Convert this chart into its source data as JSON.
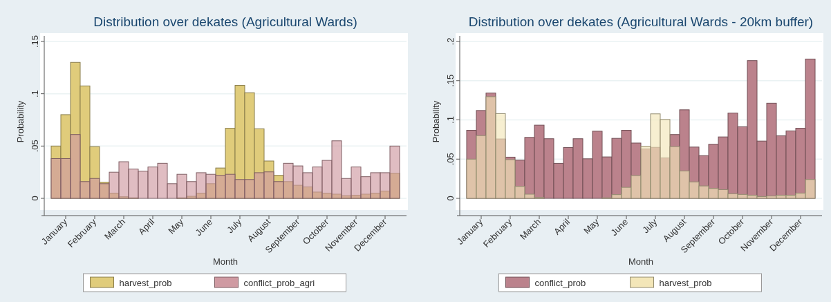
{
  "chart_data": [
    {
      "type": "bar",
      "title": "Distribution over dekates (Agricultural Wards)",
      "xlabel": "Month",
      "ylabel": "Probability",
      "categories": [
        null,
        "January",
        null,
        null,
        "February",
        null,
        null,
        "March",
        null,
        null,
        "April",
        null,
        null,
        "May",
        null,
        null,
        "June",
        null,
        null,
        "July",
        null,
        null,
        "August",
        null,
        null,
        "September",
        null,
        null,
        "October",
        null,
        null,
        "November",
        null,
        null,
        "December",
        null
      ],
      "series": [
        {
          "name": "harvest_prob",
          "color": "#e0cc7b",
          "values": [
            0.05,
            0.08,
            0.13,
            0.1075,
            0.0495,
            0.0154,
            0.005,
            0.0015,
            0.0005,
            0,
            0,
            0,
            0,
            0.0005,
            0.002,
            0.005,
            0.014,
            0.029,
            0.067,
            0.108,
            0.101,
            0.0665,
            0.0357,
            0.022,
            0.016,
            0.0125,
            0.011,
            0.006,
            0.005,
            0.004,
            0.0026,
            0.003,
            0.004,
            0.005,
            0.007,
            0.024
          ]
        },
        {
          "name": "conflict_prob_agri",
          "color": "#cf9aa2",
          "values": [
            0.038,
            0.038,
            0.061,
            0.016,
            0.019,
            0.014,
            0.025,
            0.035,
            0.028,
            0.026,
            0.03,
            0.0335,
            0.014,
            0.023,
            0.016,
            0.0245,
            0.023,
            0.022,
            0.023,
            0.018,
            0.018,
            0.0245,
            0.0253,
            0.016,
            0.0335,
            0.031,
            0.0245,
            0.03,
            0.0363,
            0.055,
            0.019,
            0.03,
            0.0207,
            0.0245,
            0.0245,
            0.05
          ]
        }
      ],
      "ylim": [
        0,
        0.15
      ],
      "yticks": [
        {
          "value": 0,
          "label": "0"
        },
        {
          "value": 0.05,
          "label": ".05"
        },
        {
          "value": 0.1,
          "label": ".1"
        },
        {
          "value": 0.15,
          "label": ".15"
        }
      ],
      "grid": "y",
      "legend": "bottom"
    },
    {
      "type": "bar",
      "title": "Distribution over dekates (Agricultural Wards - 20km buffer)",
      "xlabel": "Month",
      "ylabel": "Probability",
      "categories": [
        null,
        "January",
        null,
        null,
        "February",
        null,
        null,
        "March",
        null,
        null,
        "April",
        null,
        null,
        "May",
        null,
        null,
        "June",
        null,
        null,
        "July",
        null,
        null,
        "August",
        null,
        null,
        "September",
        null,
        null,
        "October",
        null,
        null,
        "November",
        null,
        null,
        "December",
        null
      ],
      "series": [
        {
          "name": "conflict_prob",
          "color": "#bb828c",
          "values": [
            0.0868,
            0.112,
            0.1343,
            0.0757,
            0.0525,
            0.0487,
            0.0777,
            0.0933,
            0.076,
            0.0446,
            0.0648,
            0.076,
            0.0504,
            0.0856,
            0.0528,
            0.0765,
            0.0868,
            0.0705,
            0.063,
            0.065,
            0.0516,
            0.0813,
            0.1129,
            0.0654,
            0.0545,
            0.0689,
            0.0783,
            0.1088,
            0.0912,
            0.1756,
            0.073,
            0.1213,
            0.0797,
            0.086,
            0.0894,
            0.1776
          ]
        },
        {
          "name": "harvest_prob",
          "color": "#f3e6b8",
          "values": [
            0.05,
            0.08,
            0.1296,
            0.108,
            0.0493,
            0.0152,
            0.0053,
            0.001,
            0,
            0,
            0,
            0,
            0,
            0,
            0.0006,
            0.0047,
            0.014,
            0.029,
            0.0665,
            0.1077,
            0.1006,
            0.066,
            0.035,
            0.021,
            0.0158,
            0.0126,
            0.011,
            0.0059,
            0.005,
            0.004,
            0.0023,
            0.003,
            0.004,
            0.004,
            0.0067,
            0.024
          ]
        }
      ],
      "ylim": [
        0,
        0.2
      ],
      "yticks": [
        {
          "value": 0,
          "label": "0"
        },
        {
          "value": 0.05,
          "label": ".05"
        },
        {
          "value": 0.1,
          "label": ".1"
        },
        {
          "value": 0.15,
          "label": ".15"
        },
        {
          "value": 0.2,
          "label": ".2"
        }
      ],
      "grid": "y",
      "legend": "bottom"
    }
  ]
}
